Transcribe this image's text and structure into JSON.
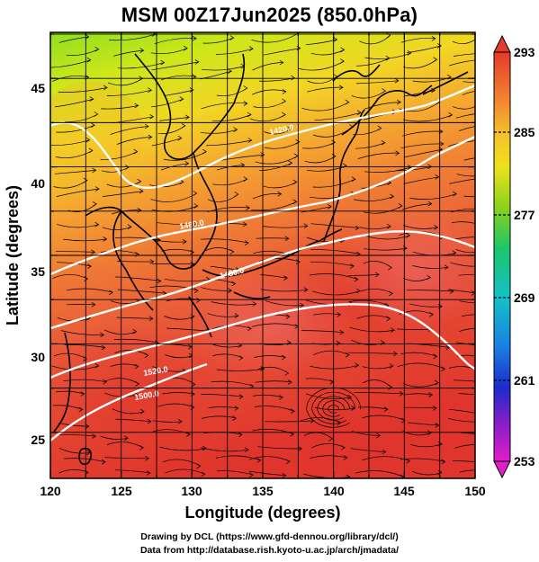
{
  "title": "MSM 00Z17Jun2025 (850.0hPa)",
  "axes": {
    "xlabel": "Longitude (degrees)",
    "ylabel": "Latitude  (degrees)",
    "xticks": [
      "120",
      "125",
      "130",
      "135",
      "140",
      "145",
      "150"
    ],
    "yticks": [
      "25",
      "30",
      "35",
      "40",
      "45"
    ]
  },
  "colorbar": {
    "labels": [
      "293",
      "285",
      "277",
      "269",
      "261",
      "253"
    ]
  },
  "contours": [
    "1420.0",
    "1460.0",
    "1480.0",
    "1500.0",
    "1520.0"
  ],
  "footer": {
    "line1": "Drawing by DCL (https://www.gfd-dennou.org/library/dcl/)",
    "line2": "Data from http://database.rish.kyoto-u.ac.jp/arch/jmadata/"
  },
  "chart_data": {
    "type": "heatmap",
    "title": "MSM 00Z17Jun2025 (850.0hPa)",
    "xlabel": "Longitude (degrees)",
    "ylabel": "Latitude  (degrees)",
    "xlim": [
      120,
      150
    ],
    "ylim": [
      22.4,
      47.6
    ],
    "color_scale": {
      "min": 253,
      "max": 293,
      "tick_values": [
        293,
        285,
        277,
        269,
        261,
        253
      ]
    },
    "contour_values": [
      1420.0,
      1460.0,
      1480.0,
      1500.0,
      1520.0
    ],
    "grid": true,
    "colors": {
      "cold_north": "#9be51e",
      "mid": "#f5b82a",
      "warm_south": "#e3362b",
      "contour": "#ffffff",
      "streamline": "#000000"
    }
  }
}
